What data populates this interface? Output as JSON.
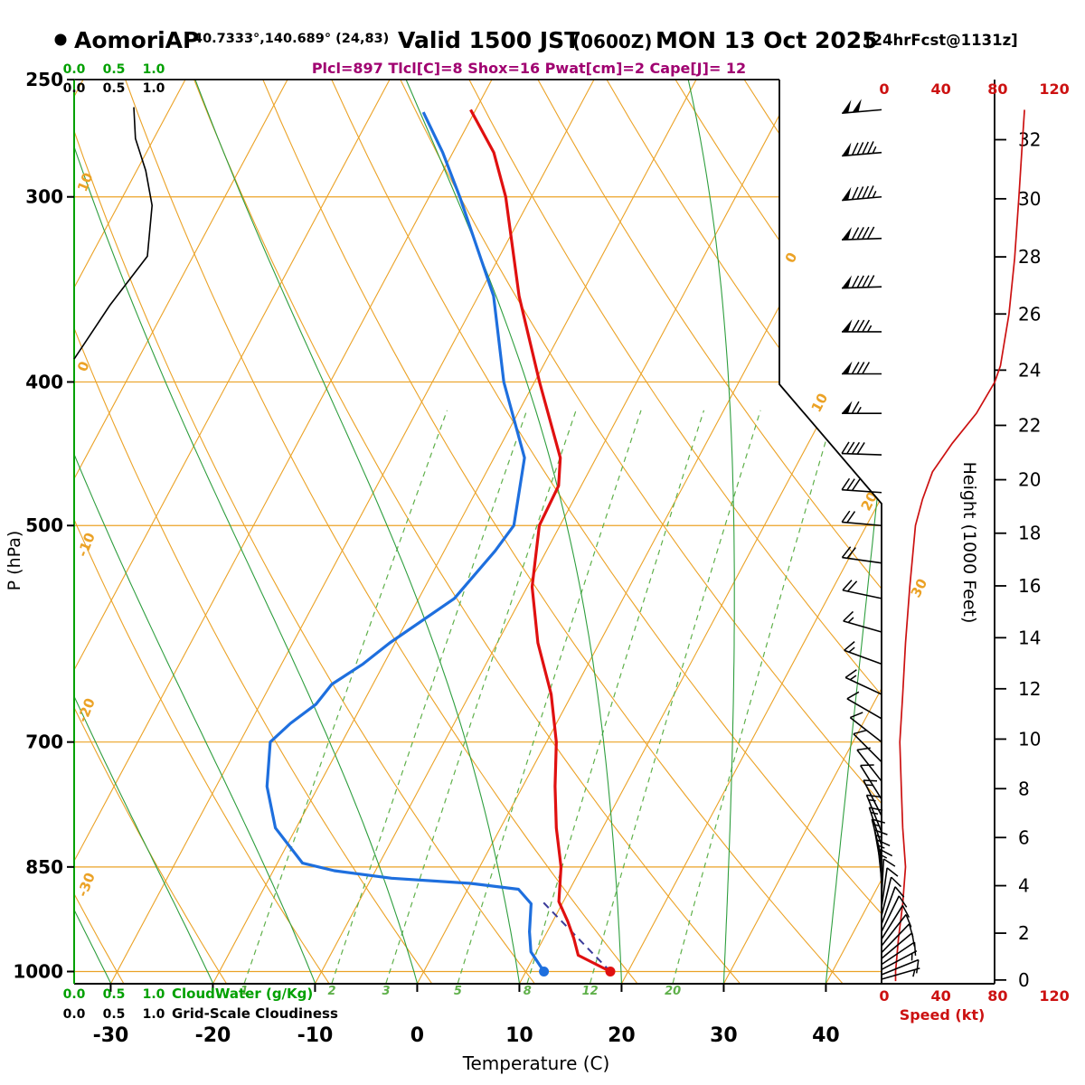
{
  "header": {
    "station": "AomoriAP",
    "coords": "40.7333°,140.689° (24,83)",
    "valid_label": "Valid 1500 JST",
    "valid_z": "(0600Z)",
    "valid_date": "MON 13 Oct 2025",
    "fcst_tag": "[24hrFcst@1131z]",
    "indices": "Plcl=897 Tlcl[C]=8 Shox=16 Pwat[cm]=2 Cape[J]= 12"
  },
  "axes": {
    "pressure": {
      "label": "P (hPa)",
      "ticks": [
        250,
        300,
        400,
        500,
        700,
        850,
        1000
      ]
    },
    "temperature": {
      "label": "Temperature (C)",
      "ticks": [
        -30,
        -20,
        -10,
        0,
        10,
        20,
        30,
        40
      ]
    },
    "height": {
      "label": "Height (1000 Feet)",
      "ticks": [
        0,
        2,
        4,
        6,
        8,
        10,
        12,
        14,
        16,
        18,
        20,
        22,
        24,
        26,
        28,
        30,
        32
      ]
    },
    "speed": {
      "label": "Speed (kt)",
      "ticks": [
        0,
        40,
        80,
        120
      ]
    },
    "cloudwater": {
      "label": "CloudWater (g/Kg)",
      "ticks": [
        "0.0",
        "0.5",
        "1.0"
      ]
    },
    "cloudiness": {
      "label": "Grid-Scale Cloudiness",
      "ticks": [
        "0.0",
        "0.5",
        "1.0"
      ]
    }
  },
  "grid": {
    "isobars": [
      300,
      400,
      500,
      700,
      850,
      1000
    ],
    "isotherm_range": [
      -100,
      40,
      10
    ],
    "isotherm_labels": [
      0,
      10,
      20,
      30
    ],
    "dry_adiabat_range": [
      -40,
      120,
      10
    ],
    "dry_adiabat_labels": [
      10,
      0,
      -10,
      -20,
      -30
    ],
    "moist_adiabat_starts": [
      -40,
      -30,
      -20,
      -10,
      0,
      10,
      20,
      30,
      40
    ],
    "mixing_ratios": [
      1,
      2,
      3,
      5,
      8,
      12,
      20
    ]
  },
  "chart_data": {
    "type": "skewt-log-p-sounding",
    "pressure_range_hpa": [
      250,
      1018
    ],
    "surface_temperature_c": 18.3,
    "surface_dewpoint_c": 11.8,
    "temperature_profile": [
      {
        "p": 1000,
        "t": 18.3
      },
      {
        "p": 975,
        "t": 14.3
      },
      {
        "p": 950,
        "t": 13.0
      },
      {
        "p": 925,
        "t": 11.5
      },
      {
        "p": 897,
        "t": 9.6
      },
      {
        "p": 850,
        "t": 8.0
      },
      {
        "p": 800,
        "t": 5.5
      },
      {
        "p": 750,
        "t": 3.2
      },
      {
        "p": 700,
        "t": 1.0
      },
      {
        "p": 650,
        "t": -2.0
      },
      {
        "p": 600,
        "t": -6.0
      },
      {
        "p": 550,
        "t": -9.5
      },
      {
        "p": 500,
        "t": -12.0
      },
      {
        "p": 470,
        "t": -12.2
      },
      {
        "p": 450,
        "t": -13.5
      },
      {
        "p": 400,
        "t": -19.5
      },
      {
        "p": 350,
        "t": -26.0
      },
      {
        "p": 300,
        "t": -32.5
      },
      {
        "p": 280,
        "t": -36.0
      },
      {
        "p": 262,
        "t": -40.5
      }
    ],
    "dewpoint_profile": [
      {
        "p": 1000,
        "t": 11.8
      },
      {
        "p": 970,
        "t": 9.5
      },
      {
        "p": 940,
        "t": 8.3
      },
      {
        "p": 900,
        "t": 7.0
      },
      {
        "p": 880,
        "t": 5.0
      },
      {
        "p": 872,
        "t": 0.0
      },
      {
        "p": 865,
        "t": -8.0
      },
      {
        "p": 855,
        "t": -14.0
      },
      {
        "p": 845,
        "t": -17.5
      },
      {
        "p": 800,
        "t": -22.0
      },
      {
        "p": 750,
        "t": -25.0
      },
      {
        "p": 700,
        "t": -27.0
      },
      {
        "p": 680,
        "t": -26.0
      },
      {
        "p": 660,
        "t": -24.5
      },
      {
        "p": 640,
        "t": -24.0
      },
      {
        "p": 620,
        "t": -22.0
      },
      {
        "p": 600,
        "t": -20.5
      },
      {
        "p": 560,
        "t": -16.5
      },
      {
        "p": 520,
        "t": -15.0
      },
      {
        "p": 500,
        "t": -14.5
      },
      {
        "p": 450,
        "t": -17.0
      },
      {
        "p": 400,
        "t": -23.0
      },
      {
        "p": 350,
        "t": -28.5
      },
      {
        "p": 300,
        "t": -37.0
      },
      {
        "p": 280,
        "t": -41.0
      },
      {
        "p": 263,
        "t": -45.0
      }
    ],
    "parcel_path": [
      {
        "p": 1000,
        "t": 18.3
      },
      {
        "p": 897,
        "t": 8.0
      }
    ],
    "wind_speed_profile": [
      {
        "p": 262,
        "kt": 99
      },
      {
        "p": 280,
        "kt": 97
      },
      {
        "p": 300,
        "kt": 95
      },
      {
        "p": 330,
        "kt": 92
      },
      {
        "p": 360,
        "kt": 88
      },
      {
        "p": 390,
        "kt": 82
      },
      {
        "p": 400,
        "kt": 78
      },
      {
        "p": 420,
        "kt": 65
      },
      {
        "p": 440,
        "kt": 48
      },
      {
        "p": 460,
        "kt": 34
      },
      {
        "p": 480,
        "kt": 27
      },
      {
        "p": 500,
        "kt": 22
      },
      {
        "p": 550,
        "kt": 18
      },
      {
        "p": 600,
        "kt": 15
      },
      {
        "p": 650,
        "kt": 13
      },
      {
        "p": 700,
        "kt": 11
      },
      {
        "p": 750,
        "kt": 12
      },
      {
        "p": 800,
        "kt": 13
      },
      {
        "p": 850,
        "kt": 15
      },
      {
        "p": 900,
        "kt": 13
      },
      {
        "p": 950,
        "kt": 10
      },
      {
        "p": 1000,
        "kt": 8
      },
      {
        "p": 1015,
        "kt": 8
      }
    ],
    "wind_barbs": [
      {
        "p": 262,
        "kt": 100,
        "dir": 265
      },
      {
        "p": 280,
        "kt": 95,
        "dir": 265
      },
      {
        "p": 300,
        "kt": 95,
        "dir": 265
      },
      {
        "p": 320,
        "kt": 90,
        "dir": 268
      },
      {
        "p": 345,
        "kt": 90,
        "dir": 268
      },
      {
        "p": 370,
        "kt": 85,
        "dir": 270
      },
      {
        "p": 395,
        "kt": 80,
        "dir": 270
      },
      {
        "p": 420,
        "kt": 65,
        "dir": 270
      },
      {
        "p": 448,
        "kt": 40,
        "dir": 272
      },
      {
        "p": 475,
        "kt": 30,
        "dir": 274
      },
      {
        "p": 500,
        "kt": 20,
        "dir": 275
      },
      {
        "p": 530,
        "kt": 20,
        "dir": 278
      },
      {
        "p": 560,
        "kt": 20,
        "dir": 282
      },
      {
        "p": 590,
        "kt": 15,
        "dir": 286
      },
      {
        "p": 620,
        "kt": 15,
        "dir": 290
      },
      {
        "p": 650,
        "kt": 15,
        "dir": 295
      },
      {
        "p": 675,
        "kt": 10,
        "dir": 300
      },
      {
        "p": 700,
        "kt": 10,
        "dir": 308
      },
      {
        "p": 722,
        "kt": 10,
        "dir": 315
      },
      {
        "p": 744,
        "kt": 10,
        "dir": 322
      },
      {
        "p": 765,
        "kt": 10,
        "dir": 328
      },
      {
        "p": 785,
        "kt": 15,
        "dir": 333
      },
      {
        "p": 805,
        "kt": 15,
        "dir": 338
      },
      {
        "p": 822,
        "kt": 15,
        "dir": 342
      },
      {
        "p": 838,
        "kt": 15,
        "dir": 346
      },
      {
        "p": 853,
        "kt": 15,
        "dir": 350
      },
      {
        "p": 867,
        "kt": 15,
        "dir": 354
      },
      {
        "p": 880,
        "kt": 15,
        "dir": 358
      },
      {
        "p": 893,
        "kt": 10,
        "dir": 3
      },
      {
        "p": 905,
        "kt": 10,
        "dir": 8
      },
      {
        "p": 917,
        "kt": 10,
        "dir": 14
      },
      {
        "p": 929,
        "kt": 10,
        "dir": 20
      },
      {
        "p": 940,
        "kt": 10,
        "dir": 26
      },
      {
        "p": 951,
        "kt": 10,
        "dir": 32
      },
      {
        "p": 961,
        "kt": 10,
        "dir": 38
      },
      {
        "p": 971,
        "kt": 10,
        "dir": 44
      },
      {
        "p": 980,
        "kt": 10,
        "dir": 50
      },
      {
        "p": 989,
        "kt": 10,
        "dir": 56
      },
      {
        "p": 997,
        "kt": 5,
        "dir": 62
      },
      {
        "p": 1005,
        "kt": 10,
        "dir": 68
      },
      {
        "p": 1012,
        "kt": 5,
        "dir": 74
      }
    ],
    "cloudiness_profile": [
      {
        "p": 386,
        "v": 0.0
      },
      {
        "p": 355,
        "v": 0.45
      },
      {
        "p": 329,
        "v": 0.92
      },
      {
        "p": 304,
        "v": 0.98
      },
      {
        "p": 288,
        "v": 0.9
      },
      {
        "p": 274,
        "v": 0.77
      },
      {
        "p": 261,
        "v": 0.75
      }
    ]
  },
  "colors": {
    "grid_orange": "#EBA226",
    "moist_green": "#2E9E3E",
    "mixing_green": "#5FB04A",
    "cloud_green": "#00A000",
    "temp_red": "#E01010",
    "dew_blue": "#1E6FDE",
    "speed_red": "#CC1111",
    "parcel_purple": "#3B3B99",
    "indices_purple": "#A00070",
    "black": "#000000"
  }
}
